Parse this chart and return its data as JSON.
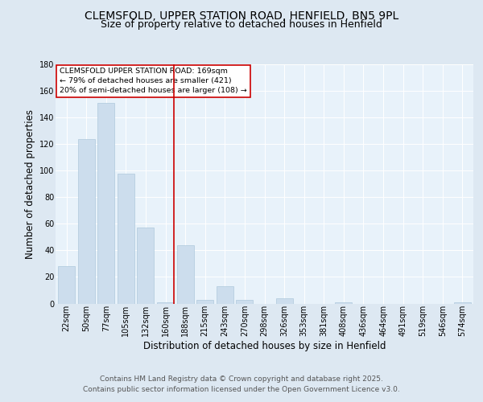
{
  "title_line1": "CLEMSFOLD, UPPER STATION ROAD, HENFIELD, BN5 9PL",
  "title_line2": "Size of property relative to detached houses in Henfield",
  "xlabel": "Distribution of detached houses by size in Henfield",
  "ylabel": "Number of detached properties",
  "bar_labels": [
    "22sqm",
    "50sqm",
    "77sqm",
    "105sqm",
    "132sqm",
    "160sqm",
    "188sqm",
    "215sqm",
    "243sqm",
    "270sqm",
    "298sqm",
    "326sqm",
    "353sqm",
    "381sqm",
    "408sqm",
    "436sqm",
    "464sqm",
    "491sqm",
    "519sqm",
    "546sqm",
    "574sqm"
  ],
  "bar_values": [
    28,
    124,
    151,
    98,
    57,
    1,
    44,
    3,
    13,
    3,
    0,
    4,
    0,
    0,
    1,
    0,
    0,
    0,
    0,
    0,
    1
  ],
  "bar_color": "#ccdded",
  "bar_edgecolor": "#aec8dc",
  "vline_x_index": 5,
  "vline_color": "#cc0000",
  "annotation_text": "CLEMSFOLD UPPER STATION ROAD: 169sqm\n← 79% of detached houses are smaller (421)\n20% of semi-detached houses are larger (108) →",
  "annotation_box_edgecolor": "#cc0000",
  "annotation_box_facecolor": "#ffffff",
  "ylim": [
    0,
    180
  ],
  "yticks": [
    0,
    20,
    40,
    60,
    80,
    100,
    120,
    140,
    160,
    180
  ],
  "footer_line1": "Contains HM Land Registry data © Crown copyright and database right 2025.",
  "footer_line2": "Contains public sector information licensed under the Open Government Licence v3.0.",
  "bg_color": "#dde8f2",
  "plot_bg_color": "#e8f2fa",
  "title_fontsize": 10,
  "subtitle_fontsize": 9,
  "axis_label_fontsize": 8.5,
  "tick_fontsize": 7,
  "footer_fontsize": 6.5
}
